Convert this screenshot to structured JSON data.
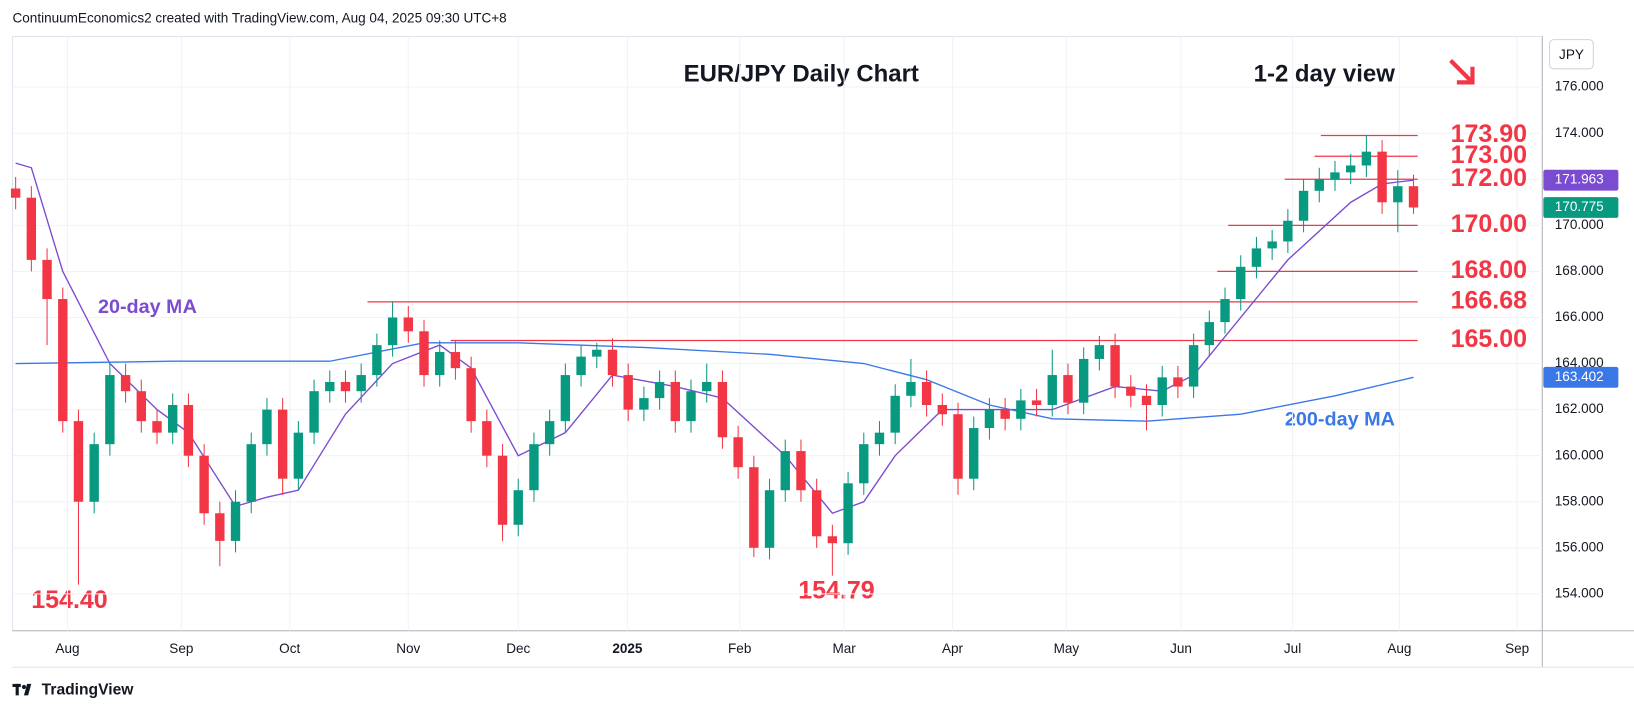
{
  "header": "ContinuumEconomics2 created with TradingView.com, Aug 04, 2025 09:30 UTC+8",
  "footer": "TradingView",
  "chart_data": {
    "type": "candlestick",
    "title": "EUR/JPY Daily Chart",
    "subtitle": "1-2 day view",
    "currency": "JPY",
    "up_color": "#089981",
    "down_color": "#f23645",
    "ylim": [
      152.4,
      178.2
    ],
    "yticks": [
      {
        "value": 154,
        "label": "154.000"
      },
      {
        "value": 156,
        "label": "156.000"
      },
      {
        "value": 158,
        "label": "158.000"
      },
      {
        "value": 160,
        "label": "160.000"
      },
      {
        "value": 162,
        "label": "162.000"
      },
      {
        "value": 164,
        "label": "164.000"
      },
      {
        "value": 166,
        "label": "166.000"
      },
      {
        "value": 168,
        "label": "168.000"
      },
      {
        "value": 170,
        "label": "170.000"
      },
      {
        "value": 172,
        "label": "172.000"
      },
      {
        "value": 174,
        "label": "174.000"
      },
      {
        "value": 176,
        "label": "176.000"
      }
    ],
    "xlim": [
      -0.2,
      97.2
    ],
    "xticks": [
      {
        "value": 3.3,
        "label": "Aug"
      },
      {
        "value": 10.55,
        "label": "Sep"
      },
      {
        "value": 17.45,
        "label": "Oct"
      },
      {
        "value": 25,
        "label": "Nov"
      },
      {
        "value": 32,
        "label": "Dec"
      },
      {
        "value": 38.95,
        "label": "2025"
      },
      {
        "value": 46.1,
        "label": "Feb"
      },
      {
        "value": 52.75,
        "label": "Mar"
      },
      {
        "value": 59.65,
        "label": "Apr"
      },
      {
        "value": 66.9,
        "label": "May"
      },
      {
        "value": 74.2,
        "label": "Jun"
      },
      {
        "value": 81.3,
        "label": "Jul"
      },
      {
        "value": 88.1,
        "label": "Aug"
      },
      {
        "value": 95.6,
        "label": "Sep"
      }
    ],
    "candles": [
      [
        171.6,
        172.1,
        170.7,
        171.2
      ],
      [
        171.2,
        171.7,
        168,
        168.5
      ],
      [
        168.5,
        169,
        164.8,
        166.8
      ],
      [
        166.8,
        167.3,
        161,
        161.5
      ],
      [
        161.5,
        162,
        154.4,
        158
      ],
      [
        158,
        161,
        157.5,
        160.5
      ],
      [
        160.5,
        164,
        160,
        163.5
      ],
      [
        163.5,
        164,
        162.3,
        162.8
      ],
      [
        162.8,
        163.3,
        161,
        161.5
      ],
      [
        161.5,
        162,
        160.5,
        161
      ],
      [
        161,
        162.7,
        160.5,
        162.2
      ],
      [
        162.2,
        162.7,
        159.5,
        160
      ],
      [
        160,
        160.5,
        157,
        157.5
      ],
      [
        157.5,
        158,
        155.2,
        156.3
      ],
      [
        156.3,
        158.5,
        155.8,
        158
      ],
      [
        158,
        161,
        157.5,
        160.5
      ],
      [
        160.5,
        162.5,
        160,
        162
      ],
      [
        162,
        162.5,
        158.3,
        159
      ],
      [
        159,
        161.5,
        158.5,
        161
      ],
      [
        161,
        163.3,
        160.5,
        162.8
      ],
      [
        162.8,
        163.7,
        162.3,
        163.2
      ],
      [
        163.2,
        163.7,
        162.3,
        162.8
      ],
      [
        162.8,
        164,
        162.3,
        163.5
      ],
      [
        163.5,
        165.3,
        163,
        164.8
      ],
      [
        164.8,
        166.7,
        164.3,
        166
      ],
      [
        166,
        166.5,
        164.9,
        165.4
      ],
      [
        165.4,
        165.9,
        163,
        163.5
      ],
      [
        163.5,
        165,
        163,
        164.5
      ],
      [
        164.5,
        165,
        163.3,
        163.8
      ],
      [
        163.8,
        164.3,
        161,
        161.5
      ],
      [
        161.5,
        162,
        159.5,
        160
      ],
      [
        160,
        160.5,
        156.3,
        157
      ],
      [
        157,
        159,
        156.5,
        158.5
      ],
      [
        158.5,
        161,
        158,
        160.5
      ],
      [
        160.5,
        162,
        160,
        161.5
      ],
      [
        161.5,
        164,
        161,
        163.5
      ],
      [
        163.5,
        164.8,
        163,
        164.3
      ],
      [
        164.3,
        164.9,
        163.8,
        164.6
      ],
      [
        164.6,
        165.1,
        163,
        163.5
      ],
      [
        163.5,
        164,
        161.5,
        162
      ],
      [
        162,
        163,
        161.5,
        162.5
      ],
      [
        162.5,
        163.7,
        162,
        163.2
      ],
      [
        163.2,
        163.7,
        161,
        161.5
      ],
      [
        161.5,
        163.3,
        161,
        162.8
      ],
      [
        162.8,
        164,
        162.3,
        163.2
      ],
      [
        163.2,
        163.7,
        160.3,
        160.8
      ],
      [
        160.8,
        161.3,
        159,
        159.5
      ],
      [
        159.5,
        160,
        155.6,
        156
      ],
      [
        156,
        159,
        155.5,
        158.5
      ],
      [
        158.5,
        160.7,
        158,
        160.2
      ],
      [
        160.2,
        160.7,
        158,
        158.5
      ],
      [
        158.5,
        159,
        156,
        156.5
      ],
      [
        156.5,
        157,
        154.79,
        156.2
      ],
      [
        156.2,
        159.3,
        155.7,
        158.8
      ],
      [
        158.8,
        161,
        158.3,
        160.5
      ],
      [
        160.5,
        161.5,
        160,
        161
      ],
      [
        161,
        163.1,
        160.5,
        162.6
      ],
      [
        162.6,
        164.2,
        162.1,
        163.2
      ],
      [
        163.2,
        163.7,
        161.7,
        162.2
      ],
      [
        162.2,
        162.7,
        161.3,
        161.8
      ],
      [
        161.8,
        162.3,
        158.3,
        159
      ],
      [
        159,
        161.7,
        158.5,
        161.2
      ],
      [
        161.2,
        162.5,
        160.7,
        162
      ],
      [
        162,
        162.5,
        161.1,
        161.6
      ],
      [
        161.6,
        162.9,
        161.1,
        162.4
      ],
      [
        162.4,
        162.9,
        161.7,
        162.2
      ],
      [
        162.2,
        164.6,
        161.7,
        163.5
      ],
      [
        163.5,
        164,
        161.8,
        162.3
      ],
      [
        162.3,
        164.7,
        161.8,
        164.2
      ],
      [
        164.2,
        165.2,
        163.7,
        164.8
      ],
      [
        164.8,
        165.3,
        162.5,
        163
      ],
      [
        163,
        163.5,
        162.1,
        162.6
      ],
      [
        162.6,
        163.1,
        161.1,
        162.2
      ],
      [
        162.2,
        163.9,
        161.7,
        163.4
      ],
      [
        163.4,
        163.9,
        162.5,
        163
      ],
      [
        163,
        165.3,
        162.5,
        164.8
      ],
      [
        164.8,
        166.3,
        164.3,
        165.8
      ],
      [
        165.8,
        167.3,
        165.3,
        166.8
      ],
      [
        166.8,
        168.7,
        166.3,
        168.2
      ],
      [
        168.2,
        169.5,
        167.7,
        169
      ],
      [
        169,
        169.8,
        168.5,
        169.3
      ],
      [
        169.3,
        170.7,
        168.8,
        170.2
      ],
      [
        170.2,
        172,
        169.7,
        171.5
      ],
      [
        171.5,
        172.5,
        171,
        172
      ],
      [
        172,
        172.8,
        171.5,
        172.3
      ],
      [
        172.3,
        173.1,
        171.8,
        172.6
      ],
      [
        172.6,
        173.9,
        172.1,
        173.2
      ],
      [
        173.2,
        173.7,
        170.5,
        171
      ],
      [
        171,
        172.4,
        169.7,
        171.7
      ],
      [
        171.7,
        172.2,
        170.5,
        170.775
      ]
    ],
    "series": [
      {
        "name": "20-day MA",
        "color": "#7b4bd1",
        "x": [
          0,
          1,
          3,
          6,
          9,
          11,
          14,
          16,
          18,
          21,
          24,
          27,
          29,
          32,
          35,
          38,
          42,
          45,
          49,
          52,
          54,
          56,
          59,
          62,
          66,
          70,
          73,
          75,
          78,
          81,
          85,
          87,
          89
        ],
        "values": [
          172.7,
          172.5,
          168,
          164,
          162,
          161,
          157.8,
          158.2,
          158.5,
          161.8,
          164,
          164.8,
          163.8,
          160,
          161,
          163.5,
          163,
          162.5,
          160,
          157.5,
          158,
          160,
          162,
          162,
          162,
          163,
          162.8,
          163.5,
          166,
          168.5,
          171,
          171.8,
          171.963
        ]
      },
      {
        "name": "200-day MA",
        "color": "#3b78e7",
        "x": [
          0,
          10,
          20,
          26,
          32,
          40,
          48,
          54,
          58,
          62,
          66,
          72,
          78,
          84,
          89
        ],
        "values": [
          164,
          164.1,
          164.1,
          164.9,
          164.9,
          164.7,
          164.4,
          164,
          163.3,
          162.2,
          161.6,
          161.5,
          161.8,
          162.6,
          163.402
        ]
      }
    ],
    "levels": [
      {
        "value": 173.9,
        "label": "173.90",
        "start": 83.1
      },
      {
        "value": 173,
        "label": "173.00",
        "start": 82.7
      },
      {
        "value": 172,
        "label": "172.00",
        "start": 80.8
      },
      {
        "value": 170,
        "label": "170.00",
        "start": 77.2
      },
      {
        "value": 168,
        "label": "168.00",
        "start": 76.5
      },
      {
        "value": 166.68,
        "label": "166.68",
        "start": 22.4
      },
      {
        "value": 165,
        "label": "165.00",
        "start": 27.7
      }
    ],
    "price_tags": [
      {
        "value": 171.963,
        "color": "#7b4bd1"
      },
      {
        "value": 170.775,
        "color": "#089981"
      },
      {
        "value": 163.402,
        "color": "#3b78e7"
      }
    ],
    "annotations": [
      "154.40",
      "154.79"
    ]
  }
}
